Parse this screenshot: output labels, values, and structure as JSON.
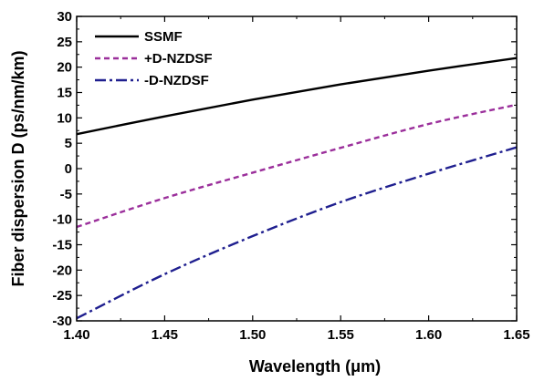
{
  "chart_data": {
    "type": "line",
    "title": "",
    "xlabel": "Wavelength  (μm)",
    "ylabel": "Fiber dispersion  D  (ps/nm/km)",
    "xlim": [
      1.4,
      1.65
    ],
    "ylim": [
      -30,
      30
    ],
    "x_ticks": [
      "1.40",
      "1.45",
      "1.50",
      "1.55",
      "1.60",
      "1.65"
    ],
    "y_ticks": [
      "-30",
      "-25",
      "-20",
      "-15",
      "-10",
      "-5",
      "0",
      "5",
      "10",
      "15",
      "20",
      "25",
      "30"
    ],
    "grid": false,
    "legend_position": "top-left",
    "x": [
      1.4,
      1.45,
      1.5,
      1.55,
      1.6,
      1.65
    ],
    "series": [
      {
        "name": "SSMF",
        "values": [
          6.8,
          10.3,
          13.6,
          16.6,
          19.3,
          21.8
        ],
        "color": "#000000",
        "style": "solid"
      },
      {
        "name": "+D-NZDSF",
        "values": [
          -11.5,
          -5.8,
          -0.8,
          4.1,
          8.8,
          12.6
        ],
        "color": "#9b2f9b",
        "style": "dashed"
      },
      {
        "name": "-D-NZDSF",
        "values": [
          -29.5,
          -20.8,
          -13.3,
          -6.6,
          -1.0,
          4.2
        ],
        "color": "#1f1f8f",
        "style": "dashdot"
      }
    ]
  }
}
